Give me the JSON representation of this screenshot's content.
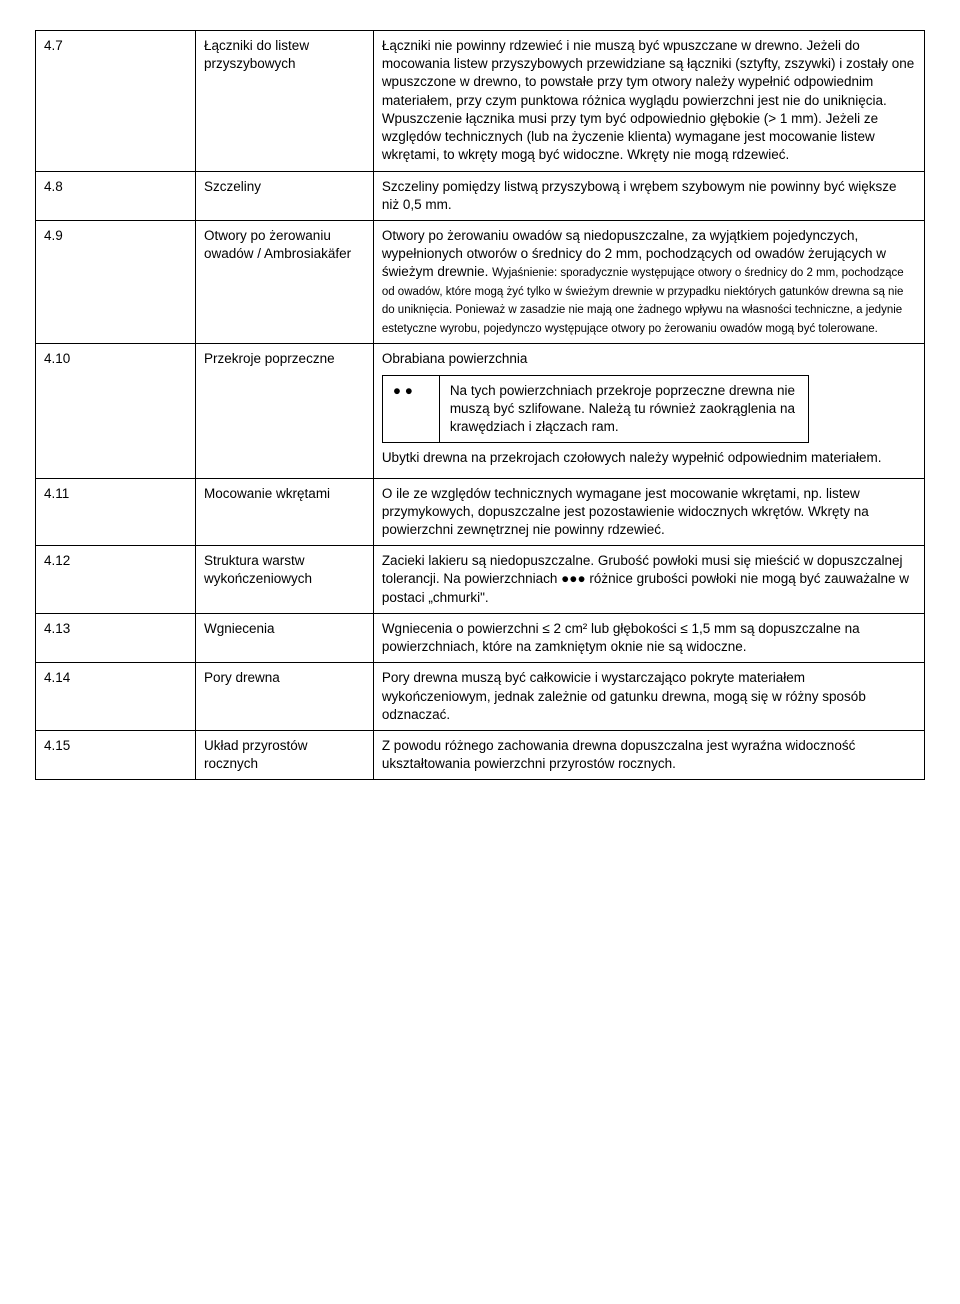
{
  "rows": [
    {
      "num": "4.7",
      "title": "Łączniki do listew przyszybowych",
      "desc": "Łączniki nie powinny rdzewieć i nie muszą być wpuszczane w drewno. Jeżeli do mocowania listew przyszybowych przewidziane są łączniki (sztyfty, zszywki) i zostały one wpuszczone w drewno, to powstałe przy tym otwory należy wypełnić odpowiednim materiałem, przy czym punktowa różnica wyglądu powierzchni jest nie do uniknięcia. Wpuszczenie łącznika musi przy tym być odpowiednio głębokie (> 1 mm).  Jeżeli ze względów technicznych (lub na życzenie klienta) wymagane jest mocowanie listew wkrętami, to wkręty mogą być widoczne. Wkręty nie mogą rdzewieć."
    },
    {
      "num": "4.8",
      "title": "Szczeliny",
      "desc": "Szczeliny pomiędzy listwą przyszybową i wrębem szybowym nie powinny być większe niż 0,5 mm."
    },
    {
      "num": "4.9",
      "title": "Otwory po żerowaniu owadów / Ambrosiakäfer",
      "desc_main": "Otwory po żerowaniu owadów są niedopuszczalne, za wyjątkiem pojedynczych, wypełnionych otworów o średnicy do 2 mm, pochodzących od owadów żerujących w świeżym drewnie. ",
      "desc_small": "Wyjaśnienie: sporadycznie występujące otwory o średnicy do 2 mm, pochodzące od owadów, które mogą żyć tylko w świeżym drewnie w przypadku niektórych gatunków drewna są nie do uniknięcia. Ponieważ w zasadzie nie mają one żadnego wpływu na własności techniczne, a jedynie estetyczne wyrobu, pojedynczo występujące otwory po żerowaniu owadów mogą być tolerowane."
    },
    {
      "num": "4.10",
      "title": "Przekroje poprzeczne",
      "desc_before": "Obrabiana powierzchnia",
      "inner_sym": "● ●",
      "inner_text": "Na tych powierzchniach przekroje poprzeczne drewna nie muszą być szlifowane. Należą tu również zaokrąglenia na krawędziach i złączach ram.",
      "desc_after": "Ubytki drewna na przekrojach czołowych należy wypełnić odpowiednim materiałem."
    },
    {
      "num": "4.11",
      "title": "Mocowanie wkrętami",
      "desc": "O ile ze względów technicznych wymagane jest mocowanie wkrętami, np. listew przymykowych, dopuszczalne jest pozostawienie widocznych wkrętów. Wkręty na powierzchni zewnętrznej nie powinny rdzewieć."
    },
    {
      "num": "4.12",
      "title": "Struktura warstw wykończeniowych",
      "desc": "Zacieki lakieru są niedopuszczalne. Grubość powłoki musi się mieścić w dopuszczalnej tolerancji. Na powierzchniach ●●● różnice grubości powłoki nie mogą być zauważalne w postaci „chmurki\"."
    },
    {
      "num": "4.13",
      "title": "Wgniecenia",
      "desc": "Wgniecenia o powierzchni  ≤ 2 cm² lub głębokości ≤ 1,5 mm są dopuszczalne na powierzchniach, które na zamkniętym oknie nie są widoczne."
    },
    {
      "num": "4.14",
      "title": "Pory drewna",
      "desc": "Pory drewna muszą być całkowicie i wystarczająco pokryte materiałem wykończeniowym, jednak zależnie od gatunku drewna, mogą się w różny sposób odznaczać."
    },
    {
      "num": "4.15",
      "title": "Układ przyrostów rocznych",
      "desc": "Z powodu różnego zachowania drewna dopuszczalna jest wyraźna widoczność ukształtowania powierzchni przyrostów rocznych."
    }
  ]
}
